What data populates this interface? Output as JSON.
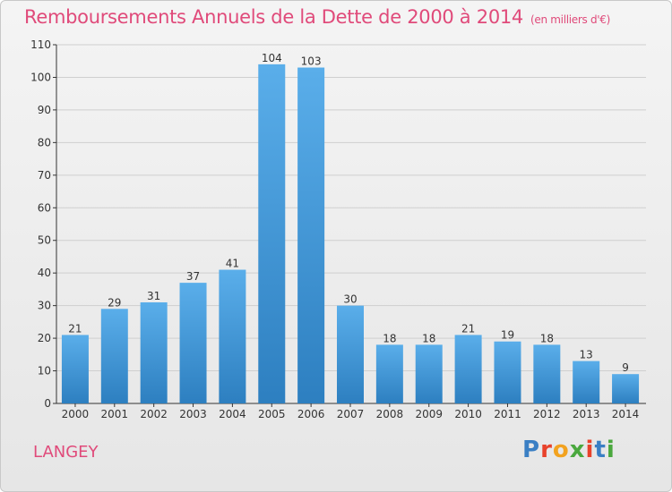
{
  "header": {
    "title": "Remboursements Annuels de la Dette de 2000 à 2014",
    "subtitle": "(en milliers d'€)"
  },
  "footer": {
    "commune": "LANGEY",
    "logo_text": "Proxiti",
    "logo_colors": [
      "#3a7fc4",
      "#e8422b",
      "#f2a21f",
      "#4aa83e",
      "#e8422b",
      "#3a7fc4",
      "#4aa83e"
    ]
  },
  "colors": {
    "accent": "#e04a7a",
    "bar_top": "#5aaeea",
    "bar_bottom": "#2d7fc0"
  },
  "chart_data": {
    "type": "bar",
    "categories": [
      "2000",
      "2001",
      "2002",
      "2003",
      "2004",
      "2005",
      "2006",
      "2007",
      "2008",
      "2009",
      "2010",
      "2011",
      "2012",
      "2013",
      "2014"
    ],
    "values": [
      21,
      29,
      31,
      37,
      41,
      104,
      103,
      30,
      18,
      18,
      21,
      19,
      18,
      13,
      9
    ],
    "ylim": [
      0,
      110
    ],
    "yticks": [
      0,
      10,
      20,
      30,
      40,
      50,
      60,
      70,
      80,
      90,
      100,
      110
    ],
    "grid": true,
    "data_labels": true
  }
}
